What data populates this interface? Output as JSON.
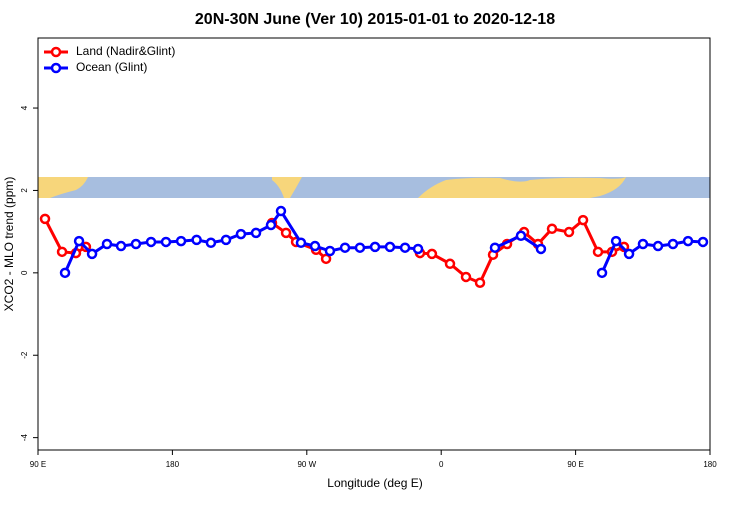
{
  "chart_data": {
    "type": "line",
    "title": "20N-30N June (Ver 10)   2015-01-01 to 2020-12-18",
    "x_label": "Longitude (deg E)",
    "y_label": "XCO2 - MLO trend (ppm)",
    "xlim": [
      90,
      540
    ],
    "ylim": [
      -4.3,
      5.7
    ],
    "xticks": [
      {
        "value": 90,
        "label": "90 E"
      },
      {
        "value": 180,
        "label": "180"
      },
      {
        "value": 270,
        "label": "90 W"
      },
      {
        "value": 360,
        "label": "0"
      },
      {
        "value": 450,
        "label": "90 E"
      },
      {
        "value": 540,
        "label": "180"
      }
    ],
    "yticks": [
      -4,
      -2,
      0,
      2,
      4
    ],
    "legend": "top-left",
    "series": [
      {
        "name": "Land (Nadir&Glint)",
        "color": "#ff0000",
        "x": [
          94.7,
          106.1,
          115.4,
          122.1,
          null,
          246.7,
          256.1,
          262.8,
          276.2,
          282.9,
          null,
          345.8,
          353.8,
          365.9,
          376.6,
          386.0,
          394.7,
          404.1,
          415.5,
          424.8,
          434.2,
          445.6,
          455.0,
          465.0,
          474.4,
          482.4
        ],
        "values": [
          1.31,
          0.51,
          0.48,
          0.63,
          null,
          1.21,
          0.97,
          0.75,
          0.56,
          0.34,
          null,
          0.48,
          0.46,
          0.22,
          -0.1,
          -0.24,
          0.44,
          0.7,
          0.99,
          0.7,
          1.07,
          0.99,
          1.28,
          0.51,
          0.51,
          0.63
        ]
      },
      {
        "name": "Ocean (Glint)",
        "color": "#0000ff",
        "x": [
          108.1,
          117.5,
          126.2,
          136.2,
          145.6,
          155.6,
          165.7,
          175.7,
          185.8,
          196.2,
          205.8,
          215.9,
          225.9,
          236.0,
          246.0,
          252.7,
          266.1,
          275.5,
          285.5,
          295.6,
          305.6,
          315.7,
          325.7,
          335.8,
          344.5,
          null,
          396.0,
          413.4,
          426.8,
          null,
          467.7,
          477.1,
          485.8,
          495.1,
          505.2,
          515.2,
          525.3,
          535.3
        ],
        "values": [
          0.0,
          0.77,
          0.46,
          0.7,
          0.65,
          0.7,
          0.75,
          0.75,
          0.77,
          0.8,
          0.73,
          0.8,
          0.94,
          0.97,
          1.16,
          1.5,
          0.73,
          0.65,
          0.53,
          0.61,
          0.61,
          0.63,
          0.63,
          0.61,
          0.58,
          null,
          0.61,
          0.9,
          0.58,
          null,
          0.0,
          0.77,
          0.46,
          0.7,
          0.65,
          0.7,
          0.77,
          0.75
        ]
      }
    ]
  }
}
